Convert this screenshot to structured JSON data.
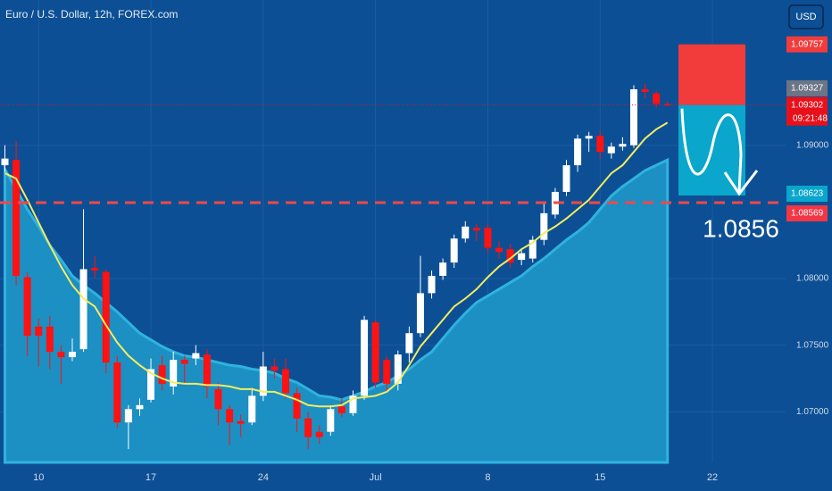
{
  "chart_data": {
    "type": "candlestick",
    "title": "Euro / U.S. Dollar, 12h, FOREX.com",
    "currency": "USD",
    "categories": [
      null,
      null,
      null,
      "10",
      null,
      null,
      null,
      null,
      null,
      null,
      null,
      null,
      null,
      "17",
      null,
      null,
      null,
      null,
      null,
      null,
      null,
      null,
      null,
      "24",
      null,
      null,
      null,
      null,
      null,
      null,
      null,
      null,
      null,
      "Jul",
      null,
      null,
      null,
      null,
      null,
      null,
      null,
      null,
      null,
      "8",
      null,
      null,
      null,
      null,
      null,
      null,
      null,
      null,
      null,
      "15",
      null,
      null,
      null,
      null,
      null,
      null,
      null,
      null,
      null,
      "22",
      null,
      null,
      null,
      null,
      null,
      null
    ],
    "open": [
      1.0885,
      1.0889,
      1.0801,
      1.0764,
      1.0764,
      1.0745,
      1.0741,
      1.0747,
      1.0808,
      1.0805,
      1.0737,
      1.0692,
      1.0702,
      1.0709,
      1.0735,
      1.0719,
      1.0739,
      1.074,
      1.0743,
      1.0717,
      1.0702,
      1.0693,
      1.0692,
      1.0712,
      1.0734,
      1.0732,
      1.0714,
      1.0695,
      1.0685,
      1.0685,
      1.0704,
      1.0699,
      1.0712,
      1.0767,
      1.0739,
      1.0721,
      1.0744,
      1.0759,
      1.0789,
      1.0802,
      1.0812,
      1.083,
      1.0838,
      1.0838,
      1.0823,
      1.0822,
      1.0814,
      1.0815,
      1.0829,
      1.0848,
      1.0865,
      1.0885,
      1.0905,
      1.0907,
      1.0894,
      1.0899,
      1.09,
      1.0942,
      1.0939,
      1.0931,
      null,
      null,
      null,
      null,
      null,
      null,
      null,
      null,
      null,
      null
    ],
    "high": [
      1.09,
      1.0903,
      1.0805,
      1.077,
      1.0772,
      1.075,
      1.0755,
      1.0852,
      1.0817,
      1.0807,
      1.0742,
      1.0705,
      1.071,
      1.074,
      1.0742,
      1.0745,
      1.0742,
      1.075,
      1.0747,
      1.0722,
      1.0705,
      1.0698,
      1.0718,
      1.0745,
      1.074,
      1.074,
      1.0718,
      1.07,
      1.069,
      1.0705,
      1.071,
      1.0716,
      1.0772,
      1.0769,
      1.0742,
      1.0746,
      1.0764,
      1.0817,
      1.0806,
      1.0815,
      1.0833,
      1.0843,
      1.0841,
      1.0841,
      1.0828,
      1.0826,
      1.0822,
      1.0832,
      1.0856,
      1.0868,
      1.0889,
      1.0908,
      1.091,
      1.0911,
      1.0902,
      1.0906,
      1.0945,
      1.0946,
      1.0941,
      1.0933,
      null,
      null,
      null,
      null,
      null,
      null,
      null,
      null,
      null,
      null
    ],
    "low": [
      1.088,
      1.0795,
      1.0742,
      1.0734,
      1.0732,
      1.0721,
      1.0738,
      1.0745,
      1.08,
      1.0729,
      1.0688,
      1.0672,
      1.0697,
      1.0707,
      1.0716,
      1.0713,
      1.072,
      1.0735,
      1.071,
      1.069,
      1.0675,
      1.0681,
      1.069,
      1.0708,
      1.0725,
      1.071,
      1.0685,
      1.0672,
      1.0676,
      1.0682,
      1.0696,
      1.0697,
      1.0709,
      1.0718,
      1.0715,
      1.0716,
      1.0737,
      1.0756,
      1.0785,
      1.0799,
      1.0808,
      1.0827,
      1.0828,
      1.0819,
      1.0815,
      1.0808,
      1.081,
      1.0812,
      1.0825,
      1.0845,
      1.0862,
      1.088,
      1.0895,
      1.089,
      1.089,
      1.0896,
      1.0898,
      1.0935,
      1.0928,
      1.0929,
      null,
      null,
      null,
      null,
      null,
      null,
      null,
      null,
      null,
      null
    ],
    "close": [
      1.089,
      1.0802,
      1.0757,
      1.0757,
      1.0745,
      1.0741,
      1.0745,
      1.0807,
      1.0806,
      1.0737,
      1.0692,
      1.0702,
      1.0705,
      1.0732,
      1.0721,
      1.0739,
      1.0736,
      1.0744,
      1.0719,
      1.0702,
      1.0692,
      1.0691,
      1.0712,
      1.0734,
      1.0731,
      1.0714,
      1.0695,
      1.0681,
      1.0681,
      1.0702,
      1.0699,
      1.0712,
      1.0769,
      1.0722,
      1.0721,
      1.0743,
      1.0759,
      1.0789,
      1.0802,
      1.0812,
      1.083,
      1.0839,
      1.0836,
      1.0823,
      1.082,
      1.0812,
      1.0819,
      1.0829,
      1.0849,
      1.0865,
      1.0885,
      1.0905,
      1.0907,
      1.0895,
      1.0899,
      1.0901,
      1.0942,
      1.094,
      1.0931,
      1.093,
      null,
      null,
      null,
      null,
      null,
      null,
      null,
      null,
      null,
      null
    ],
    "up_color": "#ffffff",
    "down_color": "#ff1212",
    "ma": {
      "color": "#f5ec5f",
      "values": [
        1.0879,
        1.0875,
        1.0859,
        1.0842,
        1.0825,
        1.0809,
        1.0795,
        1.0785,
        1.0779,
        1.0765,
        1.0752,
        1.0742,
        1.0735,
        1.0729,
        1.0725,
        1.0722,
        1.0721,
        1.0721,
        1.072,
        1.072,
        1.0719,
        1.0717,
        1.0717,
        1.0715,
        1.0715,
        1.0712,
        1.0709,
        1.0705,
        1.0704,
        1.0704,
        1.0705,
        1.071,
        1.0711,
        1.0712,
        1.0715,
        1.0722,
        1.0735,
        1.0749,
        1.0759,
        1.0769,
        1.0779,
        1.0785,
        1.0792,
        1.0801,
        1.0809,
        1.0815,
        1.0822,
        1.0827,
        1.0834,
        1.0839,
        1.0845,
        1.0852,
        1.0859,
        1.0869,
        1.0879,
        1.0885,
        1.0895,
        1.0905,
        1.0912,
        1.0917,
        null,
        null,
        null,
        null,
        null,
        null,
        null,
        null,
        null,
        null
      ]
    },
    "band": {
      "color": "#1c8fc3",
      "values": [
        1.0882,
        1.0867,
        1.0852,
        1.0839,
        1.0825,
        1.0814,
        1.0802,
        1.0795,
        1.0789,
        1.0782,
        1.0775,
        1.0767,
        1.0759,
        1.0754,
        1.0749,
        1.0745,
        1.0742,
        1.0741,
        1.0739,
        1.0737,
        1.0735,
        1.0734,
        1.0732,
        1.0731,
        1.0729,
        1.0725,
        1.0722,
        1.0717,
        1.0712,
        1.0711,
        1.0709,
        1.0712,
        1.0715,
        1.0719,
        1.0722,
        1.0727,
        1.0732,
        1.0739,
        1.0745,
        1.0755,
        1.0765,
        1.0774,
        1.0782,
        1.0787,
        1.0792,
        1.0797,
        1.0802,
        1.0809,
        1.0815,
        1.0822,
        1.0829,
        1.0835,
        1.0842,
        1.0852,
        1.0862,
        1.0869,
        1.0875,
        1.0881,
        1.0885,
        1.0889,
        null,
        null,
        null,
        null,
        null,
        null,
        null,
        null,
        null,
        null
      ]
    },
    "ylim": [
      1.0662,
      1.1009
    ],
    "yticks": [
      {
        "value": 1.07,
        "label": "1.07000"
      },
      {
        "value": 1.075,
        "label": "1.07500"
      },
      {
        "value": 1.08,
        "label": "1.08000"
      },
      {
        "value": 1.09,
        "label": "1.09000"
      }
    ],
    "grid": true,
    "position": {
      "stop": 1.09757,
      "entry": 1.09302,
      "target": 1.08623,
      "stop_color": "#f23c3c",
      "target_color": "#0aa6cc"
    },
    "level": {
      "value": 1.08569,
      "color": "#f04848"
    },
    "price_labels": [
      {
        "value": 1.09757,
        "color": "#f23c3c"
      },
      {
        "value": 1.09327,
        "color": "#6b7585"
      },
      {
        "value": 1.09302,
        "color": "#e8101a",
        "countdown": "09:21:48"
      },
      {
        "value": 1.08623,
        "color": "#0aa6cc"
      },
      {
        "value": 1.08569,
        "color": "#f23645"
      }
    ],
    "annotation": "1.0856"
  }
}
